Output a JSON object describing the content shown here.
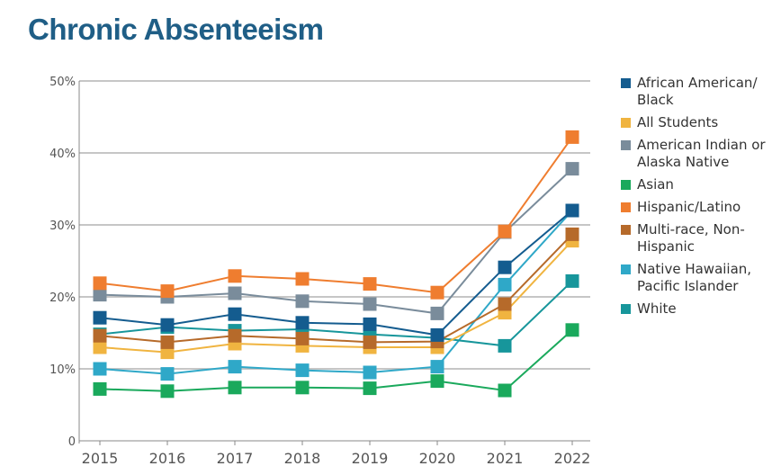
{
  "title": "Chronic Absenteeism",
  "chart_data": {
    "type": "line",
    "title": "Chronic Absenteeism",
    "x": [
      "2015",
      "2016",
      "2017",
      "2018",
      "2019",
      "2020",
      "2021",
      "2022"
    ],
    "ylim": [
      0,
      50
    ],
    "yticks": [
      {
        "value": 0,
        "label": "0"
      },
      {
        "value": 10,
        "label": "10%"
      },
      {
        "value": 20,
        "label": "20%"
      },
      {
        "value": 30,
        "label": "30%"
      },
      {
        "value": 40,
        "label": "40%"
      },
      {
        "value": 50,
        "label": "50%"
      }
    ],
    "grid": true,
    "legend_position": "right",
    "series": [
      {
        "name": "Native Hawaiian, Pacific Islander",
        "color": "#2fa8c8",
        "values": [
          10.0,
          9.3,
          10.3,
          9.8,
          9.5,
          10.3,
          21.7,
          32.0
        ]
      },
      {
        "name": "White",
        "color": "#17969b",
        "values": [
          14.8,
          15.8,
          15.3,
          15.5,
          14.8,
          14.3,
          13.2,
          22.2
        ]
      },
      {
        "name": "Asian",
        "color": "#1aa95c",
        "values": [
          7.2,
          6.9,
          7.4,
          7.4,
          7.3,
          8.3,
          7.0,
          15.4
        ]
      },
      {
        "name": "All Students",
        "color": "#f0b440",
        "values": [
          13.0,
          12.3,
          13.5,
          13.2,
          13.0,
          13.0,
          17.8,
          27.8
        ]
      },
      {
        "name": "Multi-race, Non-Hispanic",
        "color": "#b66a2a",
        "values": [
          14.6,
          13.7,
          14.6,
          14.2,
          13.7,
          13.8,
          19.0,
          28.7
        ]
      },
      {
        "name": "American Indian or Alaska Native",
        "color": "#7a8c9b",
        "values": [
          20.3,
          20.0,
          20.5,
          19.4,
          19.0,
          17.7,
          29.0,
          37.8
        ]
      },
      {
        "name": "Hispanic/Latino",
        "color": "#ef7d2f",
        "values": [
          21.9,
          20.8,
          22.9,
          22.5,
          21.8,
          20.6,
          29.1,
          42.2
        ]
      },
      {
        "name": "African American/ Black",
        "color": "#145c8f",
        "values": [
          17.1,
          16.1,
          17.6,
          16.4,
          16.2,
          14.7,
          24.1,
          32.0
        ]
      }
    ]
  },
  "legend": [
    {
      "label": "African American/ Black",
      "color": "#145c8f"
    },
    {
      "label": "All Students",
      "color": "#f0b440"
    },
    {
      "label": "American Indian or Alaska Native",
      "color": "#7a8c9b"
    },
    {
      "label": "Asian",
      "color": "#1aa95c"
    },
    {
      "label": "Hispanic/Latino",
      "color": "#ef7d2f"
    },
    {
      "label": "Multi-race, Non-Hispanic",
      "color": "#b66a2a"
    },
    {
      "label": "Native Hawaiian, Pacific Islander",
      "color": "#2fa8c8"
    },
    {
      "label": "White",
      "color": "#17969b"
    }
  ]
}
